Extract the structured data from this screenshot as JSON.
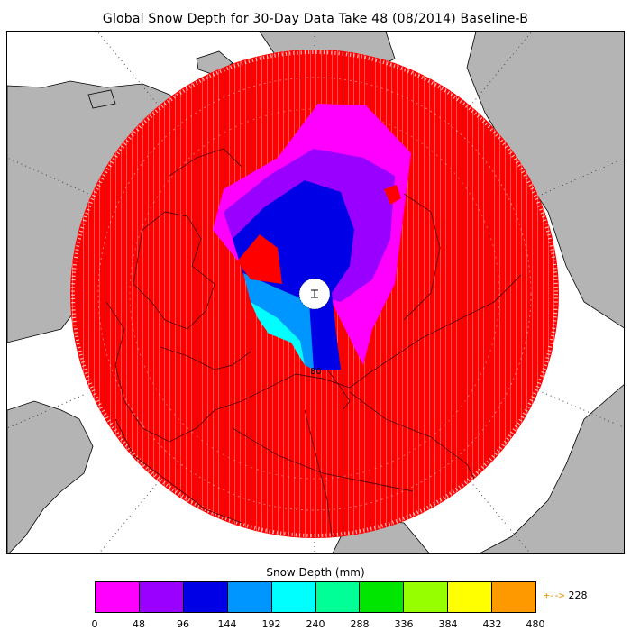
{
  "title": "Global Snow Depth for 30-Day Data Take 48 (08/2014) Baseline-B",
  "map": {
    "projection": "north-polar-stereographic",
    "latitude_label": "80",
    "colors": {
      "ocean": "#ffffff",
      "land_outside_data": "#b4b4b4",
      "data_zero": "#ff0000",
      "pole_hole": "#ffffff",
      "graticule": "#000000"
    }
  },
  "legend": {
    "title": "Snow Depth (mm)",
    "ticks": [
      "0",
      "48",
      "96",
      "144",
      "192",
      "240",
      "288",
      "336",
      "384",
      "432",
      "480"
    ],
    "bins": [
      {
        "min": 0,
        "max": 48,
        "color": "#ff00ff"
      },
      {
        "min": 48,
        "max": 96,
        "color": "#9a00ff"
      },
      {
        "min": 96,
        "max": 144,
        "color": "#0000e6"
      },
      {
        "min": 144,
        "max": 192,
        "color": "#0096ff"
      },
      {
        "min": 192,
        "max": 240,
        "color": "#00ffff"
      },
      {
        "min": 240,
        "max": 288,
        "color": "#00ff96"
      },
      {
        "min": 288,
        "max": 336,
        "color": "#00e600"
      },
      {
        "min": 336,
        "max": 384,
        "color": "#96ff00"
      },
      {
        "min": 384,
        "max": 432,
        "color": "#ffff00"
      },
      {
        "min": 432,
        "max": 480,
        "color": "#ff9900"
      }
    ],
    "max_indicator": {
      "symbol": "arrow-right-icon",
      "value": "228",
      "color": "#e69500"
    }
  }
}
